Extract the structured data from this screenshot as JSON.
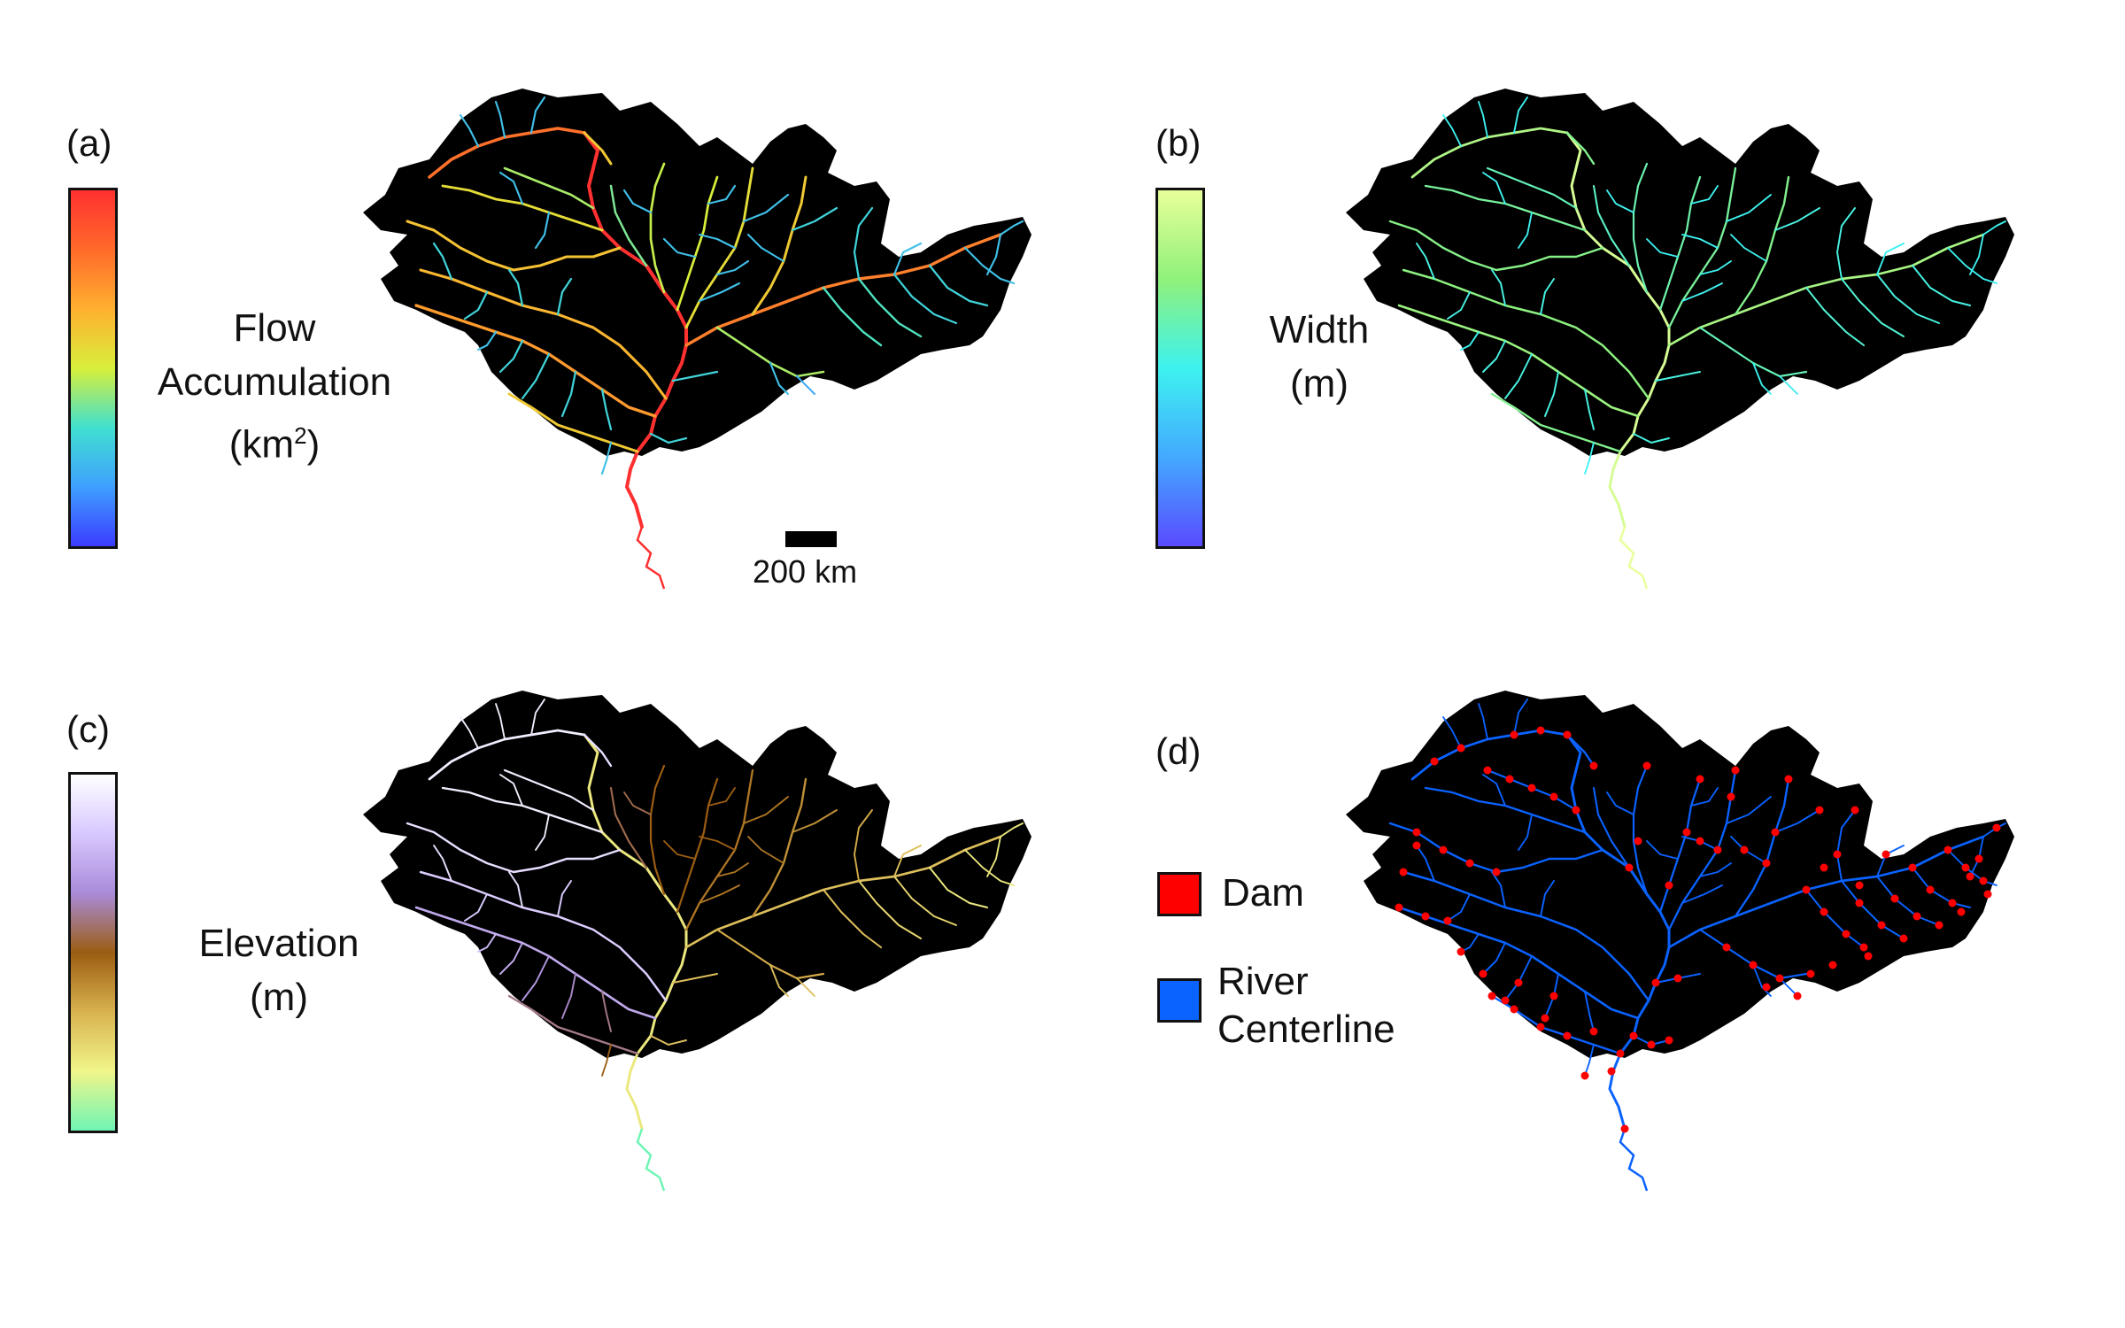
{
  "panels": {
    "a": {
      "letter": "(a)",
      "label_lines": [
        "Flow",
        "Accumulation",
        "(km"
      ],
      "label_sup": "2",
      "label_tail": ")"
    },
    "b": {
      "letter": "(b)",
      "label_lines": [
        "Width",
        "(m)"
      ]
    },
    "c": {
      "letter": "(c)",
      "label_lines": [
        "Elevation",
        "(m)"
      ]
    },
    "d": {
      "letter": "(d)"
    }
  },
  "colormaps": {
    "flow": [
      "#3b3bff",
      "#3fa0ff",
      "#40e0d0",
      "#d8ef3a",
      "#ffb030",
      "#ff6a2a",
      "#ff3030"
    ],
    "width": [
      "#5a4bff",
      "#43a9ff",
      "#3ef2f0",
      "#8ff17a",
      "#e8ff9a"
    ],
    "elevation": [
      "#6ff5b5",
      "#f0f58a",
      "#d9b24f",
      "#9b5d12",
      "#a98bd9",
      "#d8c8ff",
      "#ffffff"
    ]
  },
  "scale_bar": {
    "label": "200 km"
  },
  "legend": {
    "dam": {
      "label": "Dam",
      "color": "#ff0000"
    },
    "river": {
      "label_line1": "River",
      "label_line2": "Centerline",
      "color": "#0a62ff"
    }
  },
  "basin_color": "#000000"
}
